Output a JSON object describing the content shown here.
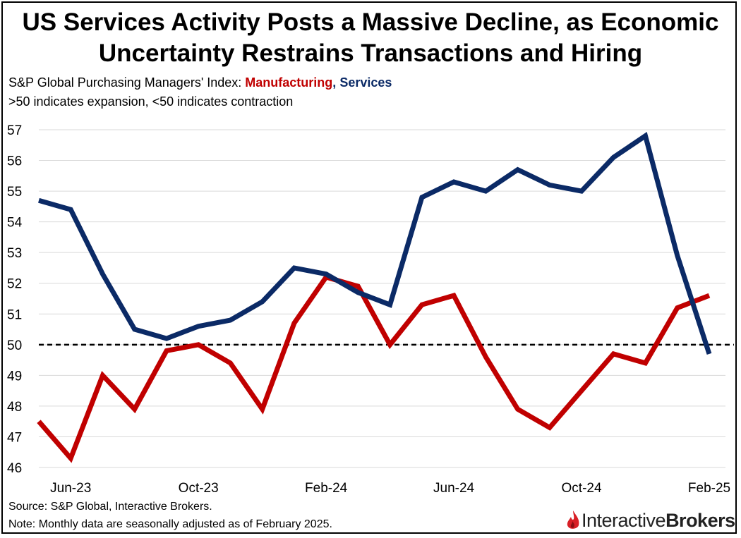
{
  "title_line1": "US Services Activity Posts a Massive Decline, as Economic",
  "title_line2": "Uncertainty Restrains Transactions and Hiring",
  "subtitle_prefix": "S&P Global Purchasing Managers' Index: ",
  "subtitle_manufacturing": "Manufacturing",
  "subtitle_comma": ", ",
  "subtitle_services": "Services",
  "subtitle_line2": ">50 indicates expansion, <50 indicates contraction",
  "footer": {
    "source": "Source: S&P Global, Interactive Brokers.",
    "note": "Note: Monthly data are seasonally adjusted as of February 2025."
  },
  "logo": {
    "part1": "Interactive",
    "part2": "Brokers"
  },
  "colors": {
    "manufacturing": "#c00000",
    "services": "#0b2a66",
    "grid": "#d9d9d9"
  },
  "chart_data": {
    "type": "line",
    "title": "US Services Activity Posts a Massive Decline, as Economic Uncertainty Restrains Transactions and Hiring",
    "xlabel": "",
    "ylabel": "",
    "ylim": [
      46,
      57
    ],
    "yticks": [
      46,
      47,
      48,
      49,
      50,
      51,
      52,
      53,
      54,
      55,
      56,
      57
    ],
    "x": [
      "May-23",
      "Jun-23",
      "Jul-23",
      "Aug-23",
      "Sep-23",
      "Oct-23",
      "Nov-23",
      "Dec-23",
      "Jan-24",
      "Feb-24",
      "Mar-24",
      "Apr-24",
      "May-24",
      "Jun-24",
      "Jul-24",
      "Aug-24",
      "Sep-24",
      "Oct-24",
      "Nov-24",
      "Dec-24",
      "Jan-25",
      "Feb-25"
    ],
    "xtick_labels": [
      "Jun-23",
      "Oct-23",
      "Feb-24",
      "Jun-24",
      "Oct-24",
      "Feb-25"
    ],
    "reference_line": 50,
    "series": [
      {
        "name": "Manufacturing",
        "values": [
          47.5,
          46.3,
          49.0,
          47.9,
          49.8,
          50.0,
          49.4,
          47.9,
          50.7,
          52.2,
          51.9,
          50.0,
          51.3,
          51.6,
          49.6,
          47.9,
          47.3,
          48.5,
          49.7,
          49.4,
          51.2,
          51.6
        ]
      },
      {
        "name": "Services",
        "values": [
          54.7,
          54.4,
          52.3,
          50.5,
          50.2,
          50.6,
          50.8,
          51.4,
          52.5,
          52.3,
          51.7,
          51.3,
          54.8,
          55.3,
          55.0,
          55.7,
          55.2,
          55.0,
          56.1,
          56.8,
          52.9,
          49.7
        ]
      }
    ]
  }
}
